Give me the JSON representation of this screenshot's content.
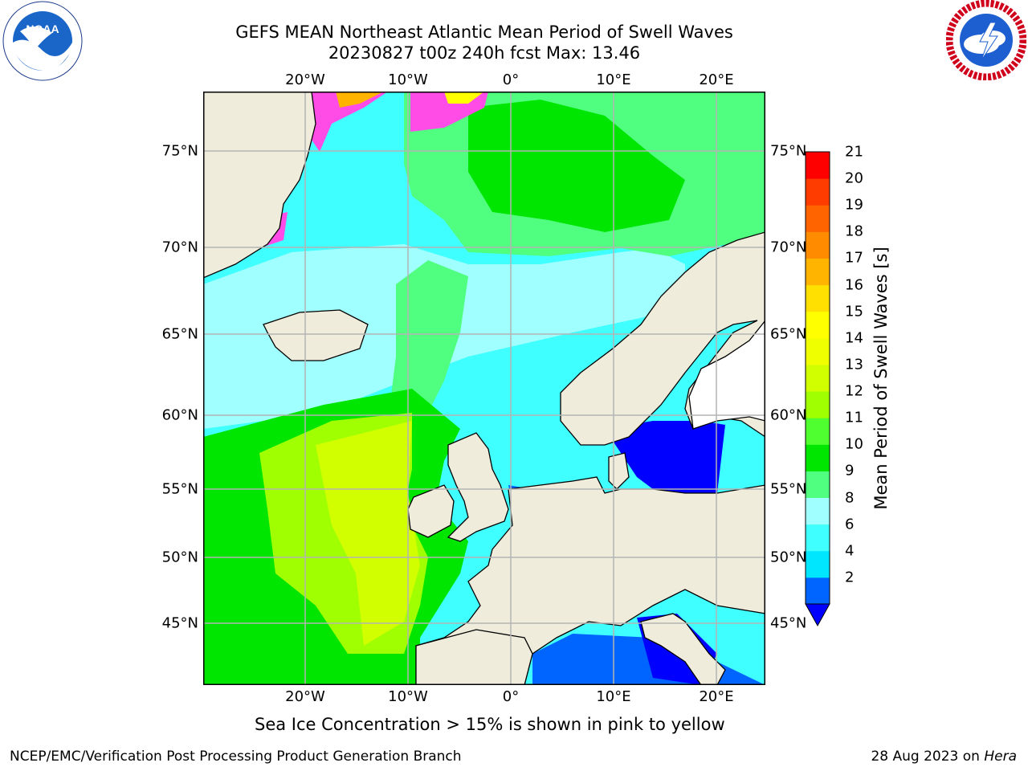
{
  "title": {
    "line1": "GEFS MEAN Northeast Atlantic Mean Period of Swell Waves",
    "line2": "20230827 t00z 240h fcst   Max: 13.46"
  },
  "logos": {
    "noaa_text": "NOAA",
    "noaa_ring_text": "NATIONAL OCEANIC AND ATMOSPHERIC ADMINISTRATION · U.S. DEPARTMENT OF COMMERCE",
    "nws_ring_text": "NATIONAL WEATHER SERVICE"
  },
  "map": {
    "lon_ticks": [
      "20°W",
      "10°W",
      "0°",
      "10°E",
      "20°E"
    ],
    "lat_ticks": [
      "75°N",
      "70°N",
      "65°N",
      "60°N",
      "55°N",
      "50°N",
      "45°N"
    ],
    "land_color": "#efecdc",
    "ocean_default_color": "#40ffff",
    "grid_color": "#b4b4b4"
  },
  "colorbar": {
    "label": "Mean Period of Swell Waves [s]",
    "ticks": [
      "21",
      "20",
      "19",
      "18",
      "17",
      "16",
      "15",
      "14",
      "13",
      "12",
      "11",
      "10",
      "9",
      "8",
      "6",
      "4",
      "2"
    ],
    "colors_low_to_high": [
      "#0064ff",
      "#00e6ff",
      "#40ffff",
      "#a0ffff",
      "#50ff80",
      "#00e600",
      "#50ff30",
      "#a0ff00",
      "#d2ff00",
      "#f0ff00",
      "#ffff00",
      "#ffe000",
      "#ffb400",
      "#ff8c00",
      "#ff6400",
      "#ff3c00",
      "#ff0000"
    ],
    "extend_color": "#0000ff"
  },
  "caption": "Sea Ice Concentration > 15% is shown in pink to yellow",
  "footer": {
    "left": "NCEP/EMC/Verification Post Processing Product Generation Branch",
    "right_prefix": "28 Aug 2023 on ",
    "right_machine": "Hera"
  }
}
